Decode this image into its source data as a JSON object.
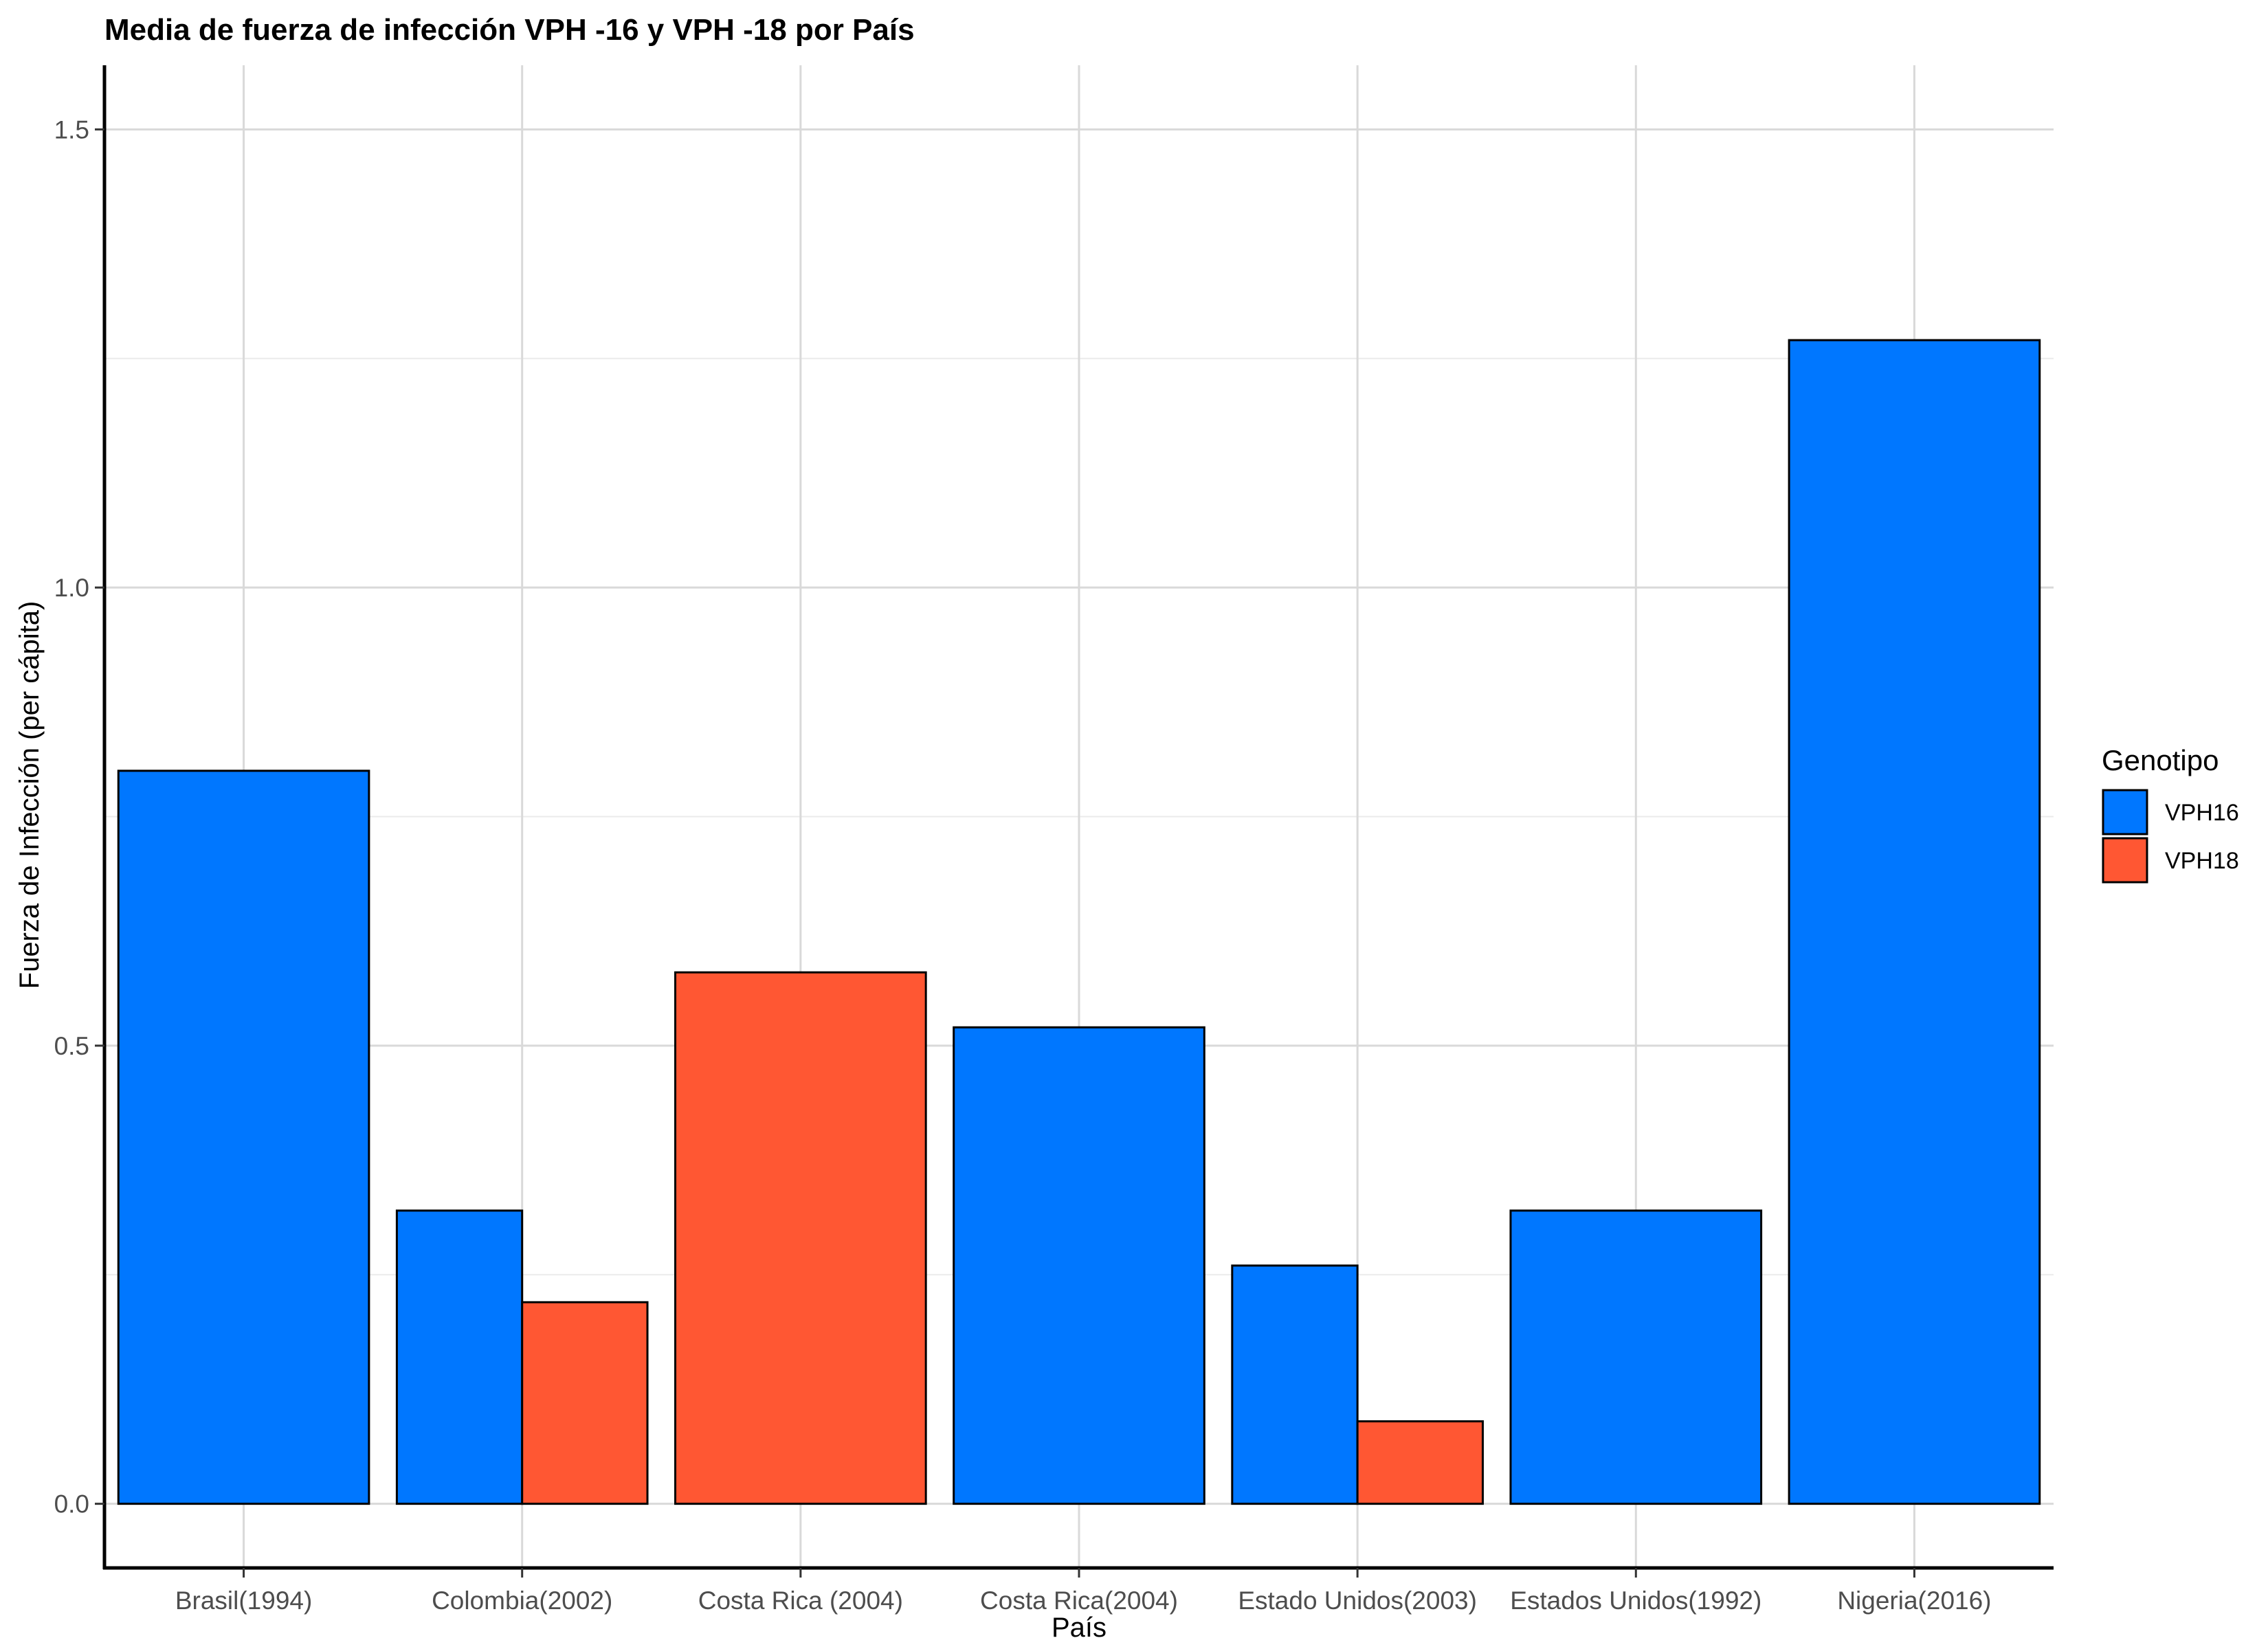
{
  "chart_data": {
    "type": "bar",
    "title": "Media de fuerza de infección VPH -16 y VPH -18 por País",
    "xlabel": "País",
    "ylabel": "Fuerza de Infección (per cápita)",
    "ylim": [
      -0.07,
      1.57
    ],
    "y_ticks": [
      "0.0",
      "0.5",
      "1.0",
      "1.5"
    ],
    "grid": true,
    "legend_title": "Genotipo",
    "legend_position": "right",
    "categories": [
      "Brasil(1994)",
      "Colombia(2002)",
      "Costa Rica (2004)",
      "Costa Rica(2004)",
      "Estado Unidos(2003)",
      "Estados Unidos(1992)",
      "Nigeria(2016)"
    ],
    "series": [
      {
        "name": "VPH16",
        "color": "#0077FF",
        "values": [
          0.8,
          0.32,
          null,
          0.52,
          0.26,
          0.32,
          1.27
        ]
      },
      {
        "name": "VPH18",
        "color": "#FF5733",
        "values": [
          null,
          0.22,
          0.58,
          null,
          0.09,
          null,
          null
        ]
      }
    ]
  }
}
